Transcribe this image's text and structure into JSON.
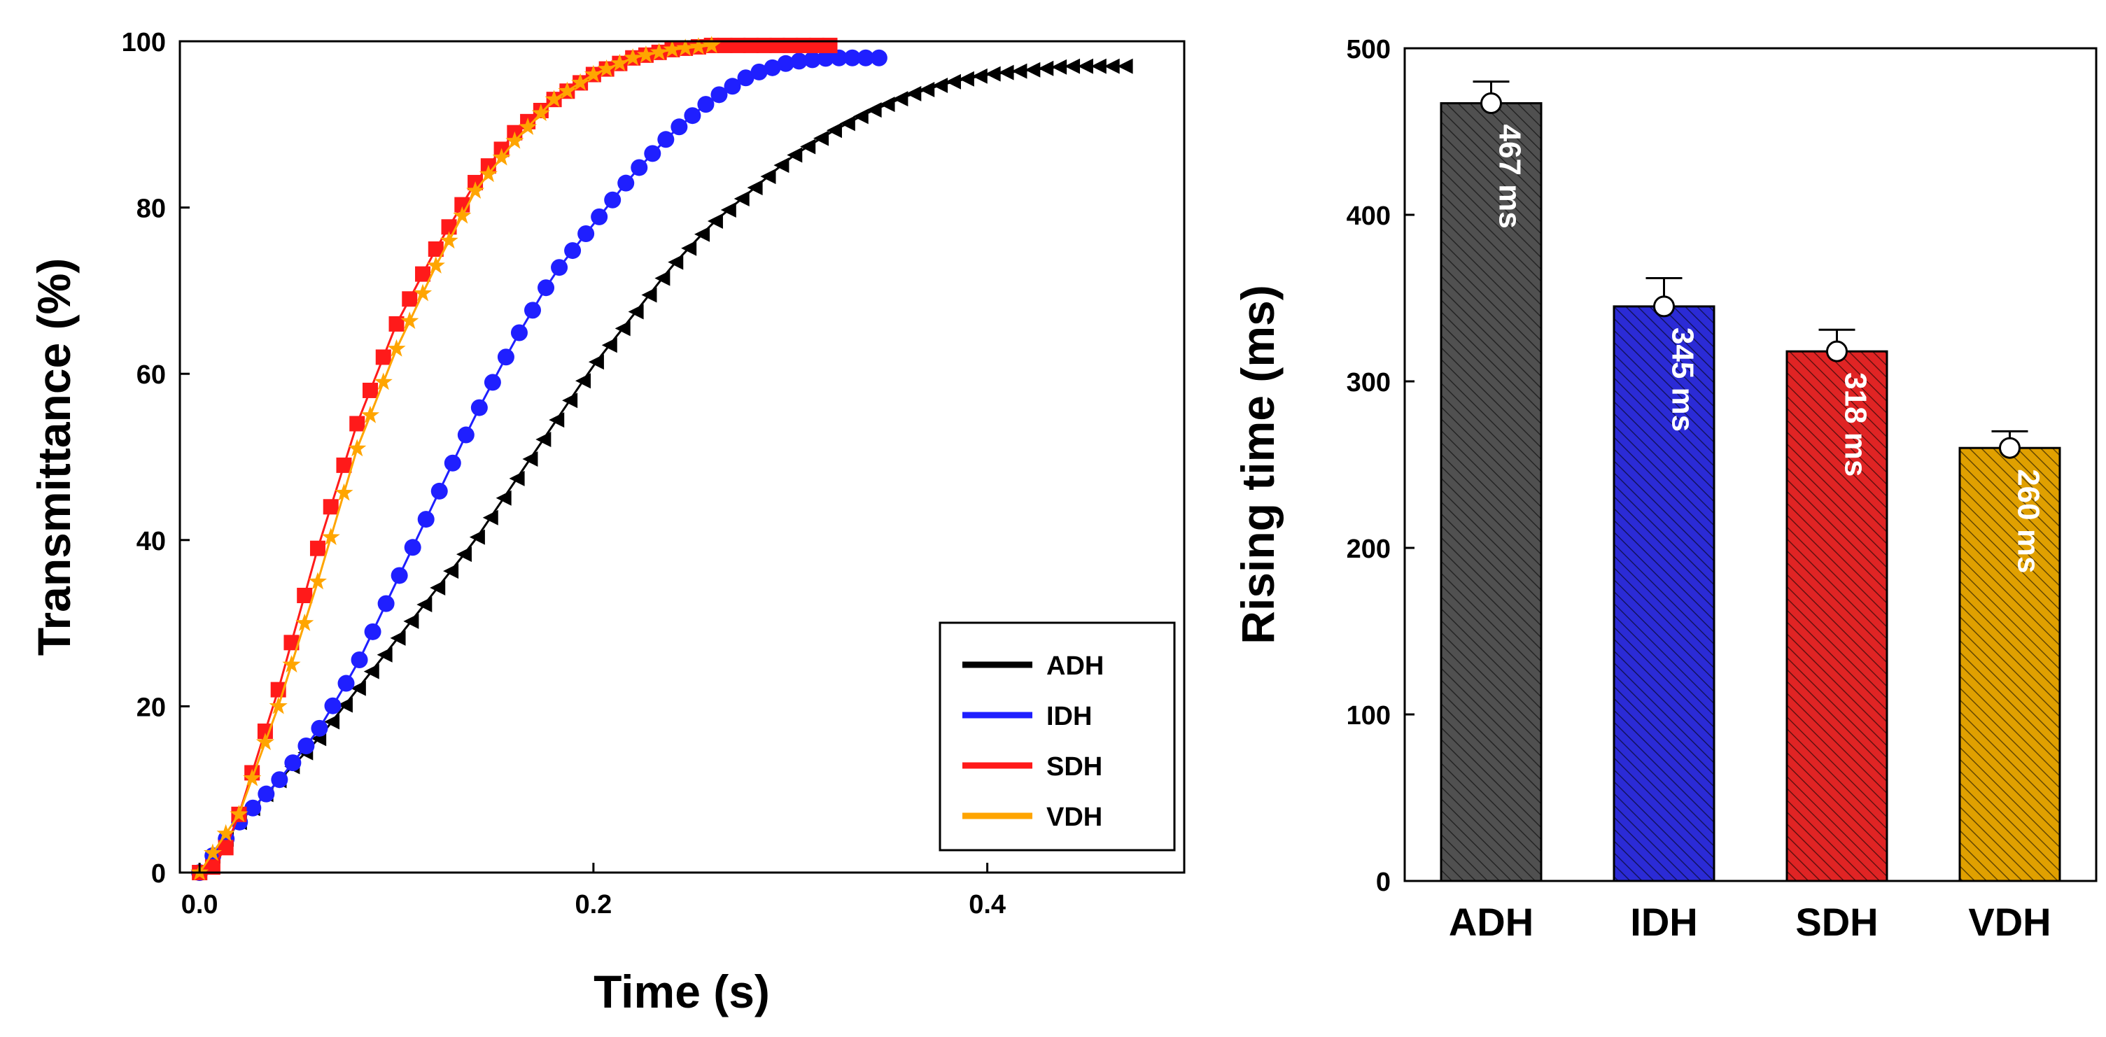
{
  "chart_data": [
    {
      "type": "line",
      "xlabel": "Time (s)",
      "ylabel": "Transmittance (%)",
      "xlim": [
        -0.01,
        0.5
      ],
      "ylim": [
        0,
        100
      ],
      "x_ticks": [
        "0.0",
        "0.2",
        "0.4"
      ],
      "y_ticks": [
        "0",
        "20",
        "40",
        "60",
        "80",
        "100"
      ],
      "grid": false,
      "legend_position": "bottom-right",
      "series": [
        {
          "name": "ADH",
          "color": "#000000",
          "marker": "triangle-left",
          "x": [
            0.0,
            0.02,
            0.04,
            0.06,
            0.08,
            0.1,
            0.12,
            0.14,
            0.16,
            0.18,
            0.2,
            0.22,
            0.24,
            0.26,
            0.28,
            0.3,
            0.32,
            0.34,
            0.36,
            0.38,
            0.4,
            0.42,
            0.44,
            0.46,
            0.47
          ],
          "y": [
            0,
            6,
            11,
            16,
            22,
            28,
            34,
            40,
            47,
            54,
            61,
            67,
            73,
            78,
            82,
            86,
            89,
            91.5,
            93.5,
            95,
            96,
            96.5,
            97,
            97,
            97
          ]
        },
        {
          "name": "IDH",
          "color": "#1f1fff",
          "marker": "circle",
          "x": [
            0.0,
            0.02,
            0.04,
            0.06,
            0.08,
            0.1,
            0.12,
            0.14,
            0.16,
            0.18,
            0.2,
            0.22,
            0.24,
            0.26,
            0.28,
            0.3,
            0.32,
            0.345
          ],
          "y": [
            0,
            6,
            11,
            17,
            25,
            35,
            45,
            55,
            64,
            72,
            78,
            84,
            89,
            93,
            96,
            97.5,
            98,
            98
          ]
        },
        {
          "name": "SDH",
          "color": "#ff1a1a",
          "marker": "square",
          "x": [
            0.0,
            0.01,
            0.02,
            0.04,
            0.06,
            0.08,
            0.1,
            0.12,
            0.14,
            0.16,
            0.18,
            0.2,
            0.22,
            0.24,
            0.26,
            0.28,
            0.3,
            0.32
          ],
          "y": [
            0,
            1,
            7,
            22,
            39,
            54,
            66,
            75,
            83,
            89,
            93,
            96,
            98,
            99,
            99.5,
            99.5,
            99.5,
            99.5
          ]
        },
        {
          "name": "VDH",
          "color": "#ffa500",
          "marker": "star",
          "x": [
            0.0,
            0.02,
            0.04,
            0.06,
            0.08,
            0.1,
            0.12,
            0.14,
            0.16,
            0.18,
            0.2,
            0.22,
            0.24,
            0.26
          ],
          "y": [
            0,
            7,
            20,
            35,
            51,
            63,
            73,
            82,
            88,
            93,
            96,
            98,
            99,
            99.5
          ]
        }
      ]
    },
    {
      "type": "bar",
      "ylabel": "Rising time (ms)",
      "ylim": [
        0,
        500
      ],
      "y_ticks": [
        "0",
        "100",
        "200",
        "300",
        "400",
        "500"
      ],
      "categories": [
        "ADH",
        "IDH",
        "SDH",
        "VDH"
      ],
      "values": [
        467,
        345,
        318,
        260
      ],
      "errors": [
        13,
        17,
        13,
        10
      ],
      "point_values": [
        467,
        345,
        318,
        260
      ],
      "data_labels": [
        "467 ms",
        "345 ms",
        "318 ms",
        "260 ms"
      ],
      "colors": [
        "#505050",
        "#2b2bd6",
        "#e02424",
        "#e0a000"
      ],
      "pattern": "diagonal-hatch",
      "grid": false
    }
  ]
}
